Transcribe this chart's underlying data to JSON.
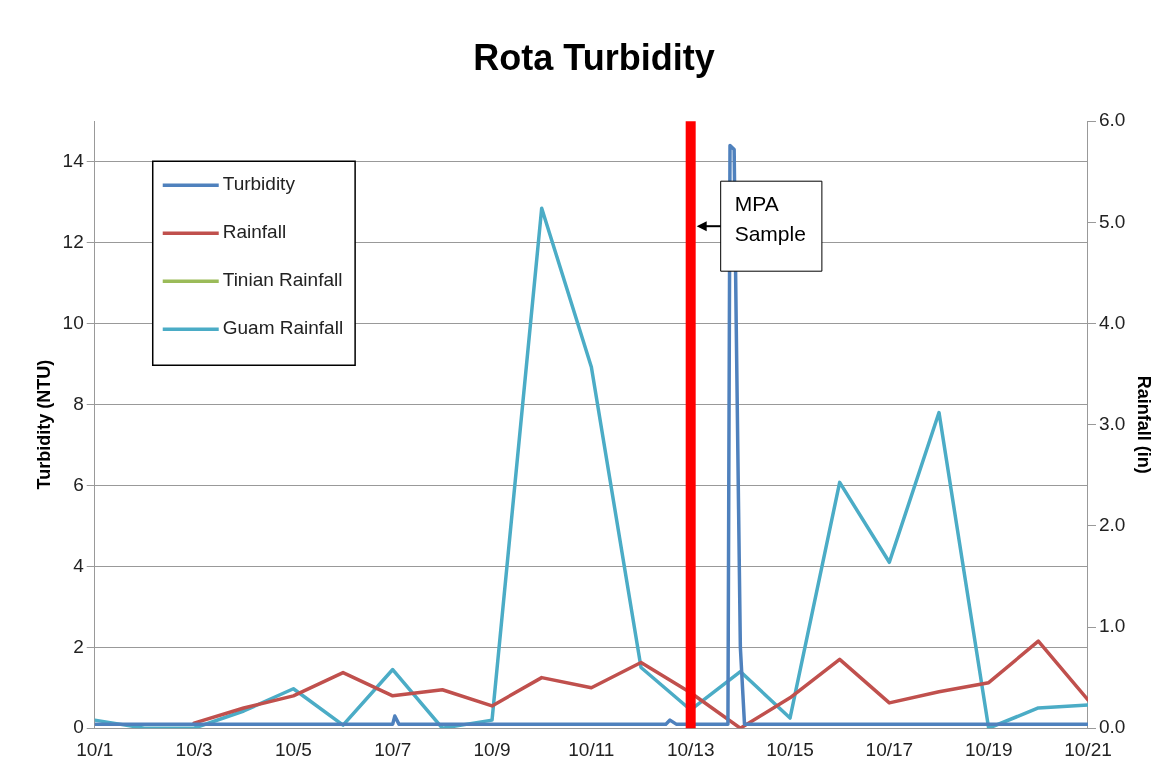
{
  "chart_data": {
    "type": "line",
    "title": "Rota Turbidity",
    "ylabel": "Turbidity (NTU)",
    "y2label": "Rainfall (in)",
    "x": [
      "--10-01",
      "--10-02",
      "--10-03",
      "--10-04",
      "--10-05",
      "--10-06",
      "--10-07",
      "--10-08",
      "--10-09",
      "--10-10",
      "--10-11",
      "--10-12",
      "--10-13",
      "--10-14",
      "--10-15",
      "--10-16",
      "--10-17",
      "--10-18",
      "--10-19",
      "--10-20",
      "--10-21"
    ],
    "series": [
      {
        "name": "Turbidity",
        "color": "#4f81bd",
        "x": [
          "--10-01T00:00",
          "--10-07T00:00",
          "--10-07T01:00",
          "--10-07T03:00",
          "--10-12T12:00",
          "--10-12T14:00",
          "--10-12T17:00",
          "--10-13T18:00",
          "--10-13T19:00",
          "--10-13T21:00",
          "--10-13T22:00",
          "--10-14T00:00",
          "--10-14T02:00",
          "--10-21T00:00"
        ],
        "values": [
          0.1,
          0.1,
          0.3,
          0.1,
          0.1,
          0.2,
          0.1,
          0.1,
          14.4,
          14.3,
          10,
          2,
          0.1,
          0.1
        ]
      },
      {
        "name": "Rainfall",
        "color": "#c0504d",
        "axis": "y2",
        "values": [
          null,
          null,
          0.05,
          0.2,
          0.32,
          0.55,
          0.32,
          0.38,
          0.22,
          0.5,
          0.4,
          0.65,
          0.35,
          0.0,
          0.3,
          0.68,
          0.25,
          0.36,
          0.45,
          0.86,
          0.28
        ]
      },
      {
        "name": "Tinian Rainfall",
        "color": "#9bbb59",
        "axis": "y2",
        "values": [
          null,
          null,
          null,
          null,
          null,
          null,
          null,
          null,
          null,
          null,
          null,
          null,
          null,
          null,
          null,
          null,
          null,
          null,
          null,
          null,
          null
        ]
      },
      {
        "name": "Guam Rainfall",
        "color": "#4bacc6",
        "axis": "y2",
        "values": [
          0.08,
          0.0,
          0.0,
          0.17,
          0.39,
          0.03,
          0.58,
          0.0,
          0.08,
          5.14,
          3.57,
          0.6,
          0.18,
          0.56,
          0.1,
          2.43,
          1.64,
          3.12,
          0.0,
          0.2,
          0.23
        ]
      }
    ],
    "xlim": [
      "--10-01",
      "--10-21"
    ],
    "xticks": [
      {
        "value": "--10-01",
        "label": "10/1"
      },
      {
        "value": "--10-03",
        "label": "10/3"
      },
      {
        "value": "--10-05",
        "label": "10/5"
      },
      {
        "value": "--10-07",
        "label": "10/7"
      },
      {
        "value": "--10-09",
        "label": "10/9"
      },
      {
        "value": "--10-11",
        "label": "10/11"
      },
      {
        "value": "--10-13",
        "label": "10/13"
      },
      {
        "value": "--10-15",
        "label": "10/15"
      },
      {
        "value": "--10-17",
        "label": "10/17"
      },
      {
        "value": "--10-19",
        "label": "10/19"
      },
      {
        "value": "--10-21",
        "label": "10/21"
      }
    ],
    "ylim": [
      0,
      15
    ],
    "yticks": [
      {
        "value": 0,
        "label": "0"
      },
      {
        "value": 2,
        "label": "2"
      },
      {
        "value": 4,
        "label": "4"
      },
      {
        "value": 6,
        "label": "6"
      },
      {
        "value": 8,
        "label": "8"
      },
      {
        "value": 10,
        "label": "10"
      },
      {
        "value": 12,
        "label": "12"
      },
      {
        "value": 14,
        "label": "14"
      }
    ],
    "y2lim": [
      0,
      6
    ],
    "y2ticks": [
      {
        "value": 0,
        "label": "0.0"
      },
      {
        "value": 1,
        "label": "1.0"
      },
      {
        "value": 2,
        "label": "2.0"
      },
      {
        "value": 3,
        "label": "3.0"
      },
      {
        "value": 4,
        "label": "4.0"
      },
      {
        "value": 5,
        "label": "5.0"
      },
      {
        "value": 6,
        "label": "6.0"
      }
    ],
    "ref_lines": [
      {
        "axis": "x",
        "value": "--10-13",
        "label": "MPA\nSample",
        "color": "#ff0000"
      }
    ],
    "grid": "y",
    "legend": "top left",
    "marker": "none",
    "line_style": "solid"
  }
}
